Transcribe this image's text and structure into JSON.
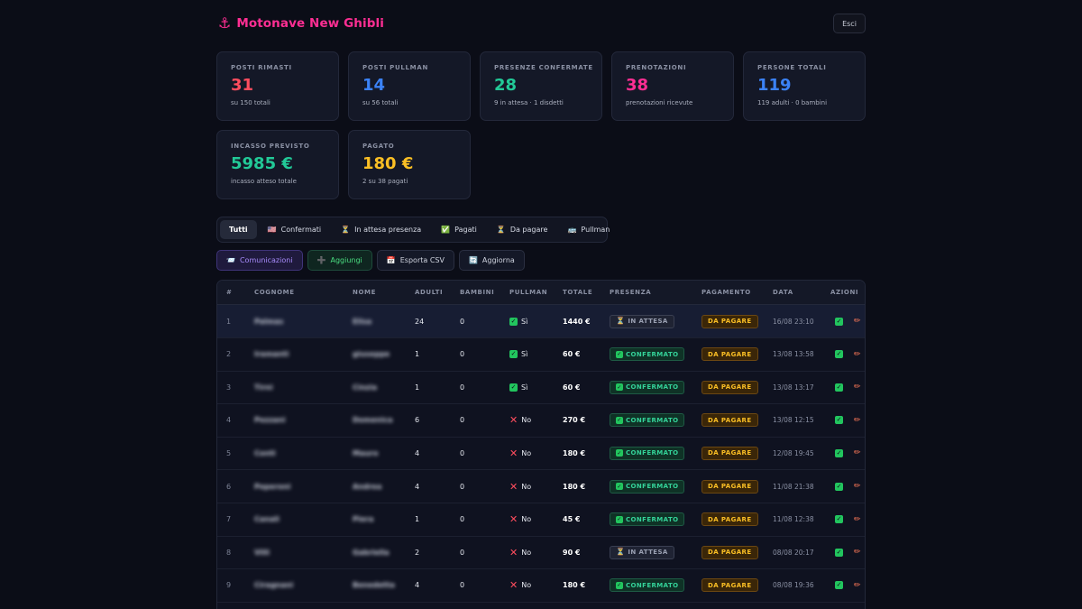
{
  "header": {
    "title": "Motonave New Ghibli",
    "logout_label": "Esci",
    "icon": "anchor-icon"
  },
  "stats": [
    {
      "label": "POSTI RIMASTI",
      "value": "31",
      "sub": "su 150 totali",
      "color": "#ff4d5e"
    },
    {
      "label": "POSTI PULLMAN",
      "value": "14",
      "sub": "su 56 totali",
      "color": "#3b82f6"
    },
    {
      "label": "PRESENZE CONFERMATE",
      "value": "28",
      "sub": "9 in attesa · 1 disdetti",
      "color": "#22c997"
    },
    {
      "label": "PRENOTAZIONI",
      "value": "38",
      "sub": "prenotazioni ricevute",
      "color": "#ff2e93"
    },
    {
      "label": "PERSONE TOTALI",
      "value": "119",
      "sub": "119 adulti · 0 bambini",
      "color": "#3b82f6"
    },
    {
      "label": "INCASSO PREVISTO",
      "value": "5985 €",
      "sub": "incasso atteso totale",
      "color": "#22c997"
    },
    {
      "label": "PAGATO",
      "value": "180 €",
      "sub": "2 su 38 pagati",
      "color": "#fbbf24"
    }
  ],
  "filters": [
    {
      "label": "Tutti",
      "icon": ""
    },
    {
      "label": "Confermati",
      "icon": "🇺🇸"
    },
    {
      "label": "In attesa presenza",
      "icon": "⏳"
    },
    {
      "label": "Pagati",
      "icon": "✅"
    },
    {
      "label": "Da pagare",
      "icon": "⏳"
    },
    {
      "label": "Pullman",
      "icon": "🚌"
    }
  ],
  "actions": [
    {
      "label": "Comunicazioni",
      "icon": "📨"
    },
    {
      "label": "Aggiungi",
      "icon": "➕"
    },
    {
      "label": "Esporta CSV",
      "icon": "📅"
    },
    {
      "label": "Aggiorna",
      "icon": "🔄"
    }
  ],
  "table": {
    "columns": [
      "#",
      "COGNOME",
      "NOME",
      "ADULTI",
      "BAMBINI",
      "PULLMAN",
      "TOTALE",
      "PRESENZA",
      "PAGAMENTO",
      "DATA",
      "AZIONI"
    ],
    "rows": [
      {
        "num": "1",
        "cognome": "Palmas",
        "nome": "Elisa",
        "adulti": "24",
        "bambini": "0",
        "pullman": "Sì",
        "pullman_yes": true,
        "totale": "1440 €",
        "presenza": "IN ATTESA",
        "presenza_ok": false,
        "pagamento": "DA PAGARE",
        "data": "16/08 23:10"
      },
      {
        "num": "2",
        "cognome": "Iramanti",
        "nome": "giuseppe",
        "adulti": "1",
        "bambini": "0",
        "pullman": "Sì",
        "pullman_yes": true,
        "totale": "60 €",
        "presenza": "CONFERMATO",
        "presenza_ok": true,
        "pagamento": "DA PAGARE",
        "data": "13/08 13:58"
      },
      {
        "num": "3",
        "cognome": "Tirni",
        "nome": "Cinzia",
        "adulti": "1",
        "bambini": "0",
        "pullman": "Sì",
        "pullman_yes": true,
        "totale": "60 €",
        "presenza": "CONFERMATO",
        "presenza_ok": true,
        "pagamento": "DA PAGARE",
        "data": "13/08 13:17"
      },
      {
        "num": "4",
        "cognome": "Pezzani",
        "nome": "Domenica",
        "adulti": "6",
        "bambini": "0",
        "pullman": "No",
        "pullman_yes": false,
        "totale": "270 €",
        "presenza": "CONFERMATO",
        "presenza_ok": true,
        "pagamento": "DA PAGARE",
        "data": "13/08 12:15"
      },
      {
        "num": "5",
        "cognome": "Conti",
        "nome": "Mauro",
        "adulti": "4",
        "bambini": "0",
        "pullman": "No",
        "pullman_yes": false,
        "totale": "180 €",
        "presenza": "CONFERMATO",
        "presenza_ok": true,
        "pagamento": "DA PAGARE",
        "data": "12/08 19:45"
      },
      {
        "num": "6",
        "cognome": "Peperoni",
        "nome": "Andrea",
        "adulti": "4",
        "bambini": "0",
        "pullman": "No",
        "pullman_yes": false,
        "totale": "180 €",
        "presenza": "CONFERMATO",
        "presenza_ok": true,
        "pagamento": "DA PAGARE",
        "data": "11/08 21:38"
      },
      {
        "num": "7",
        "cognome": "Canali",
        "nome": "Piera",
        "adulti": "1",
        "bambini": "0",
        "pullman": "No",
        "pullman_yes": false,
        "totale": "45 €",
        "presenza": "CONFERMATO",
        "presenza_ok": true,
        "pagamento": "DA PAGARE",
        "data": "11/08 12:38"
      },
      {
        "num": "8",
        "cognome": "Villi",
        "nome": "Gabriella",
        "adulti": "2",
        "bambini": "0",
        "pullman": "No",
        "pullman_yes": false,
        "totale": "90 €",
        "presenza": "IN ATTESA",
        "presenza_ok": false,
        "pagamento": "DA PAGARE",
        "data": "08/08 20:17"
      },
      {
        "num": "9",
        "cognome": "Ciragnani",
        "nome": "Benedetta",
        "adulti": "4",
        "bambini": "0",
        "pullman": "No",
        "pullman_yes": false,
        "totale": "180 €",
        "presenza": "CONFERMATO",
        "presenza_ok": true,
        "pagamento": "DA PAGARE",
        "data": "08/08 19:36"
      }
    ]
  }
}
